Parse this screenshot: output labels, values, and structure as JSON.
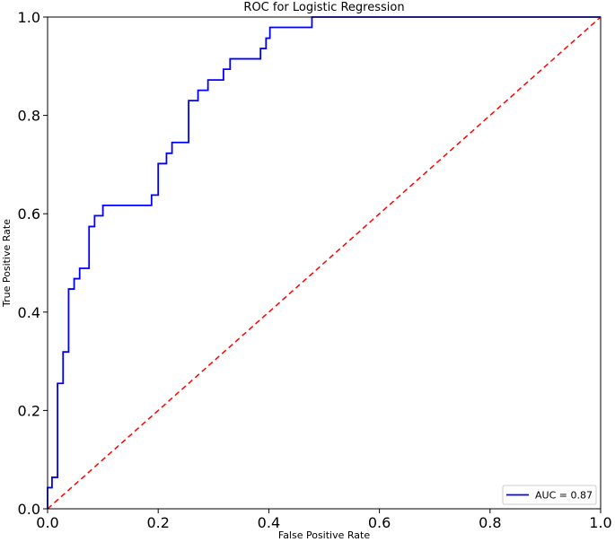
{
  "chart_data": {
    "type": "line",
    "title": "ROC for Logistic Regression",
    "xlabel": "False Positive Rate",
    "ylabel": "True Positive Rate",
    "xlim": [
      0.0,
      1.0
    ],
    "ylim": [
      0.0,
      1.0
    ],
    "x_ticks": [
      "0.0",
      "0.2",
      "0.4",
      "0.6",
      "0.8",
      "1.0"
    ],
    "y_ticks": [
      "0.0",
      "0.2",
      "0.4",
      "0.6",
      "0.8",
      "1.0"
    ],
    "grid": false,
    "legend_position": "lower-right",
    "series": [
      {
        "name": "AUC = 0.87",
        "color": "#0000ff",
        "style": "solid",
        "x": [
          0.0,
          0.0,
          0.008,
          0.008,
          0.018,
          0.018,
          0.028,
          0.028,
          0.038,
          0.038,
          0.048,
          0.048,
          0.058,
          0.058,
          0.075,
          0.075,
          0.085,
          0.085,
          0.1,
          0.1,
          0.188,
          0.188,
          0.2,
          0.2,
          0.215,
          0.215,
          0.225,
          0.225,
          0.255,
          0.255,
          0.272,
          0.272,
          0.29,
          0.29,
          0.318,
          0.318,
          0.33,
          0.33,
          0.385,
          0.385,
          0.395,
          0.395,
          0.402,
          0.402,
          0.478,
          0.478,
          1.0
        ],
        "y": [
          0.0,
          0.043,
          0.043,
          0.064,
          0.064,
          0.255,
          0.255,
          0.319,
          0.319,
          0.447,
          0.447,
          0.468,
          0.468,
          0.489,
          0.489,
          0.574,
          0.574,
          0.596,
          0.596,
          0.617,
          0.617,
          0.638,
          0.638,
          0.702,
          0.702,
          0.723,
          0.723,
          0.745,
          0.745,
          0.83,
          0.83,
          0.851,
          0.851,
          0.872,
          0.872,
          0.894,
          0.894,
          0.915,
          0.915,
          0.936,
          0.936,
          0.957,
          0.957,
          0.979,
          0.979,
          1.0,
          1.0
        ]
      },
      {
        "name": "",
        "color": "#ff0000",
        "style": "dashed",
        "x": [
          0.0,
          1.0
        ],
        "y": [
          0.0,
          1.0
        ]
      }
    ]
  }
}
